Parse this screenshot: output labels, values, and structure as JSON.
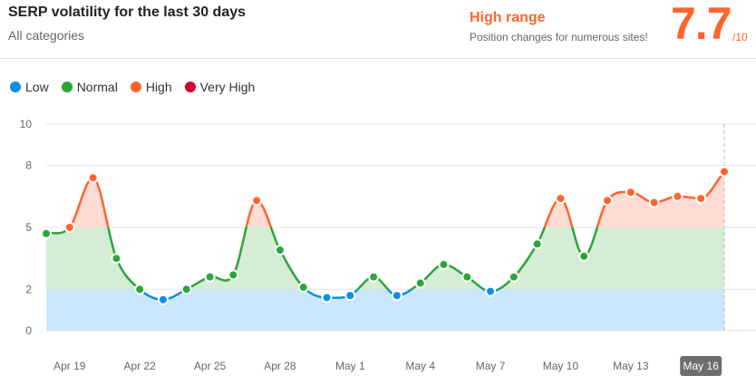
{
  "header": {
    "title": "SERP volatility for the last 30 days",
    "subtitle": "All categories",
    "range_label": "High range",
    "range_description": "Position changes for numerous sites!",
    "score": "7.7",
    "score_max": "/10"
  },
  "legend": [
    {
      "label": "Low",
      "color": "#0a8fe5"
    },
    {
      "label": "Normal",
      "color": "#2ca53b"
    },
    {
      "label": "High",
      "color": "#ff642d"
    },
    {
      "label": "Very High",
      "color": "#d1002f"
    }
  ],
  "colors": {
    "low_fill": "#cce7fb",
    "normal_fill": "#d5ecd5",
    "high_fill": "#fedcd3",
    "grid": "#e6e6e6",
    "active_tick_bg": "#6d6d6d"
  },
  "chart_data": {
    "type": "area",
    "title": "SERP volatility for the last 30 days",
    "ylim": [
      0,
      10
    ],
    "y_ticks": [
      0,
      2,
      5,
      8,
      10
    ],
    "bands": [
      {
        "name": "Low",
        "from": 0,
        "to": 2
      },
      {
        "name": "Normal",
        "from": 2,
        "to": 5
      },
      {
        "name": "High",
        "from": 5,
        "to": 8
      },
      {
        "name": "Very High",
        "from": 8,
        "to": 10
      }
    ],
    "x": [
      "Apr 18",
      "Apr 19",
      "Apr 20",
      "Apr 21",
      "Apr 22",
      "Apr 23",
      "Apr 24",
      "Apr 25",
      "Apr 26",
      "Apr 27",
      "Apr 28",
      "Apr 29",
      "Apr 30",
      "May 1",
      "May 2",
      "May 3",
      "May 4",
      "May 5",
      "May 6",
      "May 7",
      "May 8",
      "May 9",
      "May 10",
      "May 11",
      "May 12",
      "May 13",
      "May 14",
      "May 15",
      "May 16",
      "May 17"
    ],
    "x_tick_labels": [
      "Apr 19",
      "Apr 22",
      "Apr 25",
      "Apr 28",
      "May 1",
      "May 4",
      "May 7",
      "May 10",
      "May 13",
      "May 16"
    ],
    "active_tick": "May 16",
    "values": [
      4.7,
      5.0,
      7.4,
      3.5,
      2.0,
      1.5,
      2.0,
      2.6,
      2.7,
      6.3,
      3.9,
      2.1,
      1.6,
      1.7,
      2.6,
      1.7,
      2.3,
      3.2,
      2.6,
      1.9,
      2.6,
      4.2,
      6.4,
      3.6,
      6.3,
      6.7,
      6.2,
      6.5,
      6.4,
      7.7
    ]
  }
}
